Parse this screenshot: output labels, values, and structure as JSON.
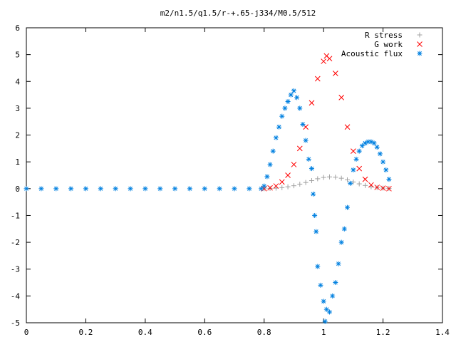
{
  "chart_data": {
    "type": "scatter",
    "title": "m2/n1.5/q1.5/r-+.65-j334/M0.5/512",
    "xlabel": "",
    "ylabel": "",
    "xlim": [
      0,
      1.4
    ],
    "ylim": [
      -5,
      6
    ],
    "x_ticks": [
      "0",
      "0.2",
      "0.4",
      "0.6",
      "0.8",
      "1",
      "1.2",
      "1.4"
    ],
    "y_ticks": [
      "-5",
      "-4",
      "-3",
      "-2",
      "-1",
      "0",
      "1",
      "2",
      "3",
      "4",
      "5",
      "6"
    ],
    "grid": false,
    "legend_position": "top-right",
    "series": [
      {
        "name": "R stress",
        "marker": "+",
        "color": "#a0a0a0",
        "points": [
          [
            0.8,
            0.0
          ],
          [
            0.82,
            0.01
          ],
          [
            0.84,
            0.02
          ],
          [
            0.86,
            0.04
          ],
          [
            0.88,
            0.07
          ],
          [
            0.9,
            0.11
          ],
          [
            0.92,
            0.17
          ],
          [
            0.94,
            0.23
          ],
          [
            0.96,
            0.3
          ],
          [
            0.98,
            0.37
          ],
          [
            1.0,
            0.42
          ],
          [
            1.02,
            0.44
          ],
          [
            1.04,
            0.43
          ],
          [
            1.06,
            0.39
          ],
          [
            1.08,
            0.33
          ],
          [
            1.1,
            0.25
          ],
          [
            1.12,
            0.18
          ],
          [
            1.14,
            0.12
          ],
          [
            1.16,
            0.07
          ],
          [
            1.18,
            0.04
          ],
          [
            1.2,
            0.02
          ],
          [
            1.22,
            0.01
          ]
        ]
      },
      {
        "name": "G work",
        "marker": "x",
        "color": "#ff0000",
        "points": [
          [
            0.8,
            0.0
          ],
          [
            0.82,
            0.03
          ],
          [
            0.84,
            0.1
          ],
          [
            0.86,
            0.25
          ],
          [
            0.88,
            0.5
          ],
          [
            0.9,
            0.9
          ],
          [
            0.92,
            1.5
          ],
          [
            0.94,
            2.3
          ],
          [
            0.96,
            3.2
          ],
          [
            0.98,
            4.1
          ],
          [
            1.0,
            4.75
          ],
          [
            1.01,
            4.95
          ],
          [
            1.02,
            4.85
          ],
          [
            1.04,
            4.3
          ],
          [
            1.06,
            3.4
          ],
          [
            1.08,
            2.3
          ],
          [
            1.1,
            1.4
          ],
          [
            1.12,
            0.75
          ],
          [
            1.14,
            0.35
          ],
          [
            1.16,
            0.14
          ],
          [
            1.18,
            0.05
          ],
          [
            1.2,
            0.02
          ],
          [
            1.22,
            0.0
          ]
        ]
      },
      {
        "name": "Acoustic flux",
        "marker": "*",
        "color": "#0080e0",
        "points": [
          [
            0.0,
            0.0
          ],
          [
            0.05,
            0.0
          ],
          [
            0.1,
            0.0
          ],
          [
            0.15,
            0.0
          ],
          [
            0.2,
            0.0
          ],
          [
            0.25,
            0.0
          ],
          [
            0.3,
            0.0
          ],
          [
            0.35,
            0.0
          ],
          [
            0.4,
            0.0
          ],
          [
            0.45,
            0.0
          ],
          [
            0.5,
            0.0
          ],
          [
            0.55,
            0.0
          ],
          [
            0.6,
            0.0
          ],
          [
            0.65,
            0.0
          ],
          [
            0.7,
            0.0
          ],
          [
            0.75,
            0.0
          ],
          [
            0.79,
            0.0
          ],
          [
            0.8,
            0.1
          ],
          [
            0.81,
            0.45
          ],
          [
            0.82,
            0.9
          ],
          [
            0.83,
            1.4
          ],
          [
            0.84,
            1.9
          ],
          [
            0.85,
            2.3
          ],
          [
            0.86,
            2.7
          ],
          [
            0.87,
            3.0
          ],
          [
            0.88,
            3.25
          ],
          [
            0.89,
            3.5
          ],
          [
            0.9,
            3.65
          ],
          [
            0.91,
            3.4
          ],
          [
            0.92,
            3.0
          ],
          [
            0.93,
            2.4
          ],
          [
            0.94,
            1.8
          ],
          [
            0.95,
            1.1
          ],
          [
            0.96,
            0.75
          ],
          [
            0.965,
            -0.2
          ],
          [
            0.97,
            -1.0
          ],
          [
            0.975,
            -1.6
          ],
          [
            0.98,
            -2.9
          ],
          [
            0.99,
            -3.6
          ],
          [
            1.0,
            -4.2
          ],
          [
            1.005,
            -4.95
          ],
          [
            1.01,
            -4.5
          ],
          [
            1.02,
            -4.6
          ],
          [
            1.03,
            -4.0
          ],
          [
            1.04,
            -3.5
          ],
          [
            1.05,
            -2.8
          ],
          [
            1.06,
            -2.0
          ],
          [
            1.07,
            -1.5
          ],
          [
            1.08,
            -0.7
          ],
          [
            1.09,
            0.2
          ],
          [
            1.1,
            0.7
          ],
          [
            1.11,
            1.1
          ],
          [
            1.12,
            1.4
          ],
          [
            1.13,
            1.6
          ],
          [
            1.14,
            1.7
          ],
          [
            1.15,
            1.75
          ],
          [
            1.16,
            1.75
          ],
          [
            1.17,
            1.7
          ],
          [
            1.18,
            1.55
          ],
          [
            1.19,
            1.3
          ],
          [
            1.2,
            1.0
          ],
          [
            1.21,
            0.7
          ],
          [
            1.22,
            0.35
          ]
        ]
      }
    ]
  }
}
